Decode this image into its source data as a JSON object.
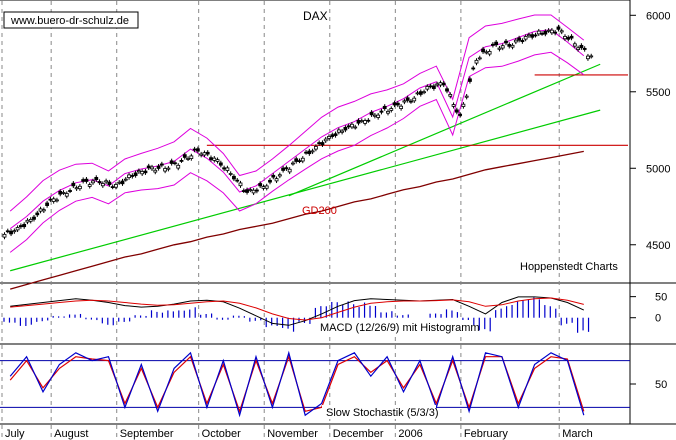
{
  "watermark": "www.buero-dr-schulz.de",
  "title": "DAX",
  "source_label": "Hoppenstedt Charts",
  "ma_label": "GD200",
  "macd_label": "MACD (12/26/9) mit Histogramm",
  "stoch_label": "Slow Stochastik (5/3/3)",
  "colors": {
    "price": "#000000",
    "bollinger": "#dd00dd",
    "trend": "#00cc00",
    "resistance": "#cc0000",
    "ma200": "#800000",
    "macd_hist": "#0000cc",
    "macd_signal": "#dd0000",
    "stoch_k": "#0000cc",
    "stoch_d": "#dd0000",
    "stoch_levels": "#0000aa"
  },
  "chart_data": [
    {
      "type": "line",
      "name": "price",
      "ylim": [
        4250,
        6100
      ],
      "yticks": [
        4500,
        5000,
        5500,
        6000
      ],
      "x_months": [
        "July",
        "August",
        "September",
        "October",
        "November",
        "December",
        "2006",
        "February",
        "March"
      ],
      "x_week_index": [
        0,
        3,
        7,
        12,
        16,
        20,
        24,
        28,
        34
      ],
      "close_weekly": [
        4600,
        4680,
        4780,
        4850,
        4900,
        4920,
        4880,
        4960,
        4990,
        5010,
        5040,
        5120,
        5060,
        4970,
        4840,
        4880,
        4960,
        5040,
        5120,
        5200,
        5260,
        5300,
        5360,
        5400,
        5450,
        5520,
        5560,
        5330,
        5720,
        5790,
        5810,
        5850,
        5890,
        5900,
        5820,
        5730
      ],
      "ma200_weekly": [
        4210,
        4240,
        4270,
        4300,
        4330,
        4360,
        4390,
        4420,
        4440,
        4470,
        4500,
        4520,
        4550,
        4570,
        4600,
        4620,
        4640,
        4670,
        4700,
        4720,
        4750,
        4780,
        4800,
        4830,
        4860,
        4880,
        4910,
        4930,
        4960,
        4990,
        5010,
        5030,
        5050,
        5070,
        5090,
        5110
      ],
      "resistance_lines": [
        {
          "value": 5150,
          "from_week": 12,
          "to_week": 36
        },
        {
          "value": 5610,
          "from_week": 32,
          "to_week": 36
        }
      ],
      "trend_lines": [
        {
          "from": [
            0,
            4330
          ],
          "to": [
            36,
            5380
          ]
        },
        {
          "from": [
            17,
            4820
          ],
          "to": [
            36,
            5680
          ]
        }
      ],
      "annotations": [
        "GD200",
        "Hoppenstedt Charts"
      ]
    },
    {
      "type": "bar",
      "name": "MACD (12/26/9) mit Histogramm",
      "ylim": [
        -60,
        80
      ],
      "yticks": [
        0,
        50
      ],
      "histogram": [
        -12,
        -20,
        -10,
        5,
        12,
        -6,
        -18,
        -10,
        6,
        20,
        25,
        28,
        10,
        -5,
        5,
        -10,
        -30,
        -40,
        -15,
        28,
        38,
        40,
        45,
        20,
        8,
        0,
        10,
        20,
        -30,
        -45,
        30,
        42,
        48,
        30,
        -20,
        -50
      ],
      "macd": [
        30,
        35,
        40,
        45,
        50,
        46,
        40,
        32,
        28,
        30,
        36,
        44,
        46,
        42,
        25,
        5,
        -15,
        -20,
        -8,
        10,
        30,
        45,
        50,
        48,
        46,
        44,
        46,
        48,
        30,
        10,
        40,
        55,
        55,
        52,
        40,
        20
      ],
      "signal": [
        28,
        32,
        36,
        40,
        44,
        46,
        44,
        40,
        36,
        33,
        34,
        38,
        42,
        44,
        38,
        26,
        10,
        -2,
        -6,
        0,
        14,
        28,
        38,
        42,
        44,
        44,
        45,
        47,
        42,
        30,
        34,
        44,
        50,
        52,
        46,
        35
      ]
    },
    {
      "type": "line",
      "name": "Slow Stochastik (5/3/3)",
      "ylim": [
        0,
        100
      ],
      "yticks": [
        50
      ],
      "levels": [
        80,
        20
      ],
      "k": [
        60,
        85,
        40,
        75,
        90,
        80,
        85,
        20,
        75,
        15,
        70,
        90,
        20,
        80,
        10,
        85,
        20,
        90,
        10,
        25,
        80,
        90,
        60,
        85,
        40,
        80,
        20,
        85,
        15,
        90,
        85,
        20,
        75,
        90,
        80,
        10
      ],
      "d": [
        55,
        80,
        45,
        70,
        85,
        82,
        80,
        25,
        70,
        20,
        65,
        85,
        25,
        75,
        15,
        80,
        25,
        85,
        15,
        20,
        75,
        85,
        65,
        80,
        45,
        75,
        25,
        80,
        20,
        85,
        85,
        25,
        70,
        85,
        82,
        15
      ]
    }
  ]
}
